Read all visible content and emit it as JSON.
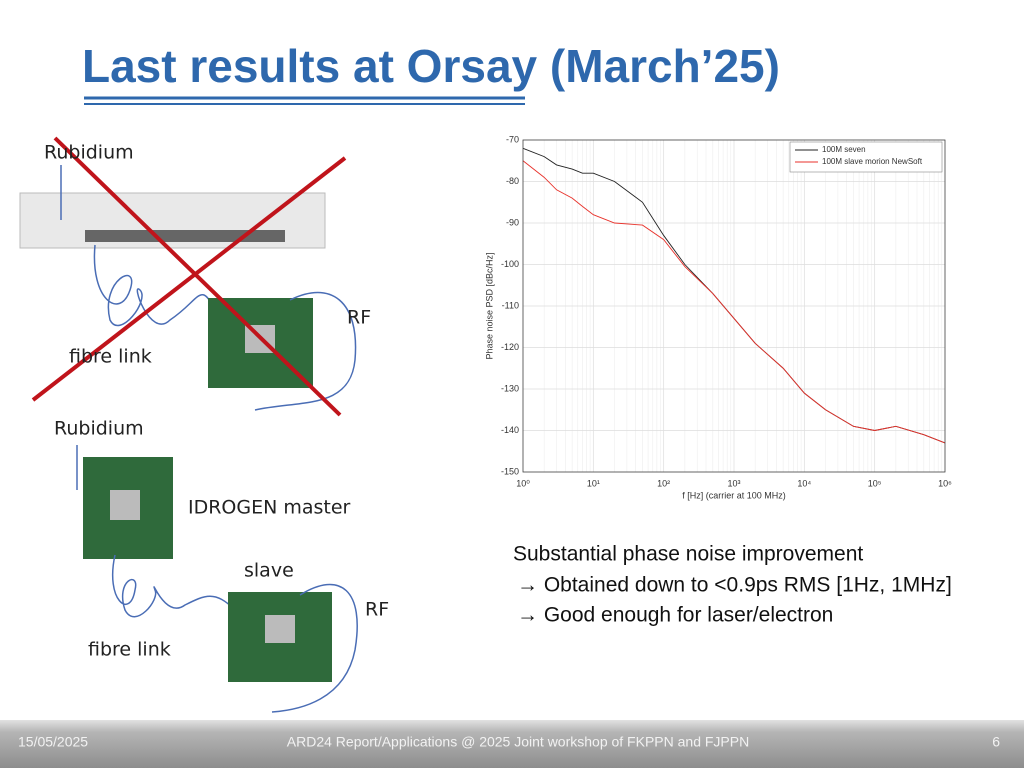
{
  "slide": {
    "title": "Last results at Orsay (March’25)",
    "labels": [
      "Rubidium",
      "RF",
      "fibre link",
      "Rubidium",
      "IDROGEN master",
      "slave",
      "RF",
      "fibre link"
    ],
    "bullets": [
      "Substantial phase noise improvement",
      "→ Obtained down to <0.9ps RMS [1Hz, 1MHz]",
      "→ Good enough for laser/electron"
    ],
    "footer": {
      "date": "15/05/2025",
      "center": "ARD24 Report/Applications @ 2025 Joint workshop of FKPPN and FJPPN",
      "page": "6"
    }
  },
  "chart_data": {
    "type": "line",
    "xscale": "log",
    "grid": true,
    "legend": "top-right",
    "ylabel": "Phase noise PSD [dBc/Hz]",
    "xlabel": "f [Hz] (carrier at 100 MHz)",
    "xlim": [
      1,
      1000000
    ],
    "ylim": [
      -150,
      -70
    ],
    "xticks": [
      {
        "value": 1,
        "label": "10⁰"
      },
      {
        "value": 10,
        "label": "10¹"
      },
      {
        "value": 100,
        "label": "10²"
      },
      {
        "value": 1000,
        "label": "10³"
      },
      {
        "value": 10000,
        "label": "10⁴"
      },
      {
        "value": 100000,
        "label": "10⁵"
      },
      {
        "value": 1000000,
        "label": "10⁶"
      }
    ],
    "yticks": [
      -150,
      -140,
      -130,
      -120,
      -110,
      -100,
      -90,
      -80,
      -70
    ],
    "x": [
      1,
      2,
      3,
      5,
      7,
      10,
      20,
      50,
      100,
      200,
      500,
      1000,
      2000,
      5000,
      10000,
      20000,
      50000,
      100000,
      200000,
      500000,
      1000000
    ],
    "series": [
      {
        "name": "100M seven",
        "color": "#222222",
        "values": [
          -72,
          -74,
          -76,
          -77,
          -78,
          -78,
          -80,
          -85,
          -93,
          -100,
          -107,
          -113,
          -119,
          -125,
          -131,
          -135,
          -139,
          -140,
          -139,
          -141,
          -143
        ]
      },
      {
        "name": "100M slave morion NewSoft",
        "color": "#e8322b",
        "values": [
          -75,
          -79,
          -82,
          -84,
          -86,
          -88,
          -90,
          -90.5,
          -94,
          -100.5,
          -107,
          -113,
          -119,
          -125,
          -131,
          -135,
          -139,
          -140,
          -139,
          -141,
          -143
        ]
      }
    ]
  }
}
